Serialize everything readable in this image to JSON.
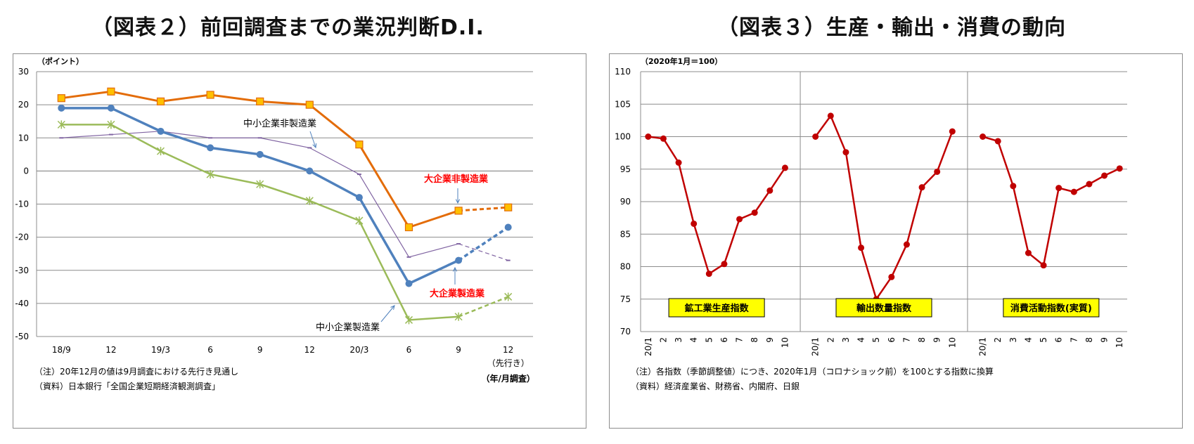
{
  "titles": {
    "left": "（図表２）前回調査までの業況判断D.I.",
    "right": "（図表３）生産・輸出・消費の動向"
  },
  "colors": {
    "large_mfg": "#4f81bd",
    "large_nonmfg": "#e36c09",
    "small_mfg": "#9bbb59",
    "small_nonmfg": "#8064a2",
    "label_red": "#ff0000",
    "index_line": "#c00000",
    "label_box": "#ffff00"
  },
  "chart_data": [
    {
      "type": "line",
      "unit": "（ポイント）",
      "ylim": [
        -50,
        30
      ],
      "yticks": [
        "30",
        "20",
        "10",
        "0",
        "-10",
        "-20",
        "-30",
        "-40",
        "-50"
      ],
      "categories": [
        "18/9",
        "12",
        "19/3",
        "6",
        "9",
        "12",
        "20/3",
        "6",
        "9",
        "12"
      ],
      "forecast_label": "（先行き）",
      "axis_note": "（年/月調査）",
      "grid": true,
      "series": [
        {
          "name": "大企業非製造業",
          "values": [
            22,
            24,
            21,
            23,
            21,
            20,
            8,
            -17,
            -12,
            -11
          ]
        },
        {
          "name": "大企業製造業",
          "values": [
            19,
            19,
            12,
            7,
            5,
            0,
            -8,
            -34,
            -27,
            -17
          ]
        },
        {
          "name": "中小企業製造業",
          "values": [
            14,
            14,
            6,
            -1,
            -4,
            -9,
            -15,
            -45,
            -44,
            -38
          ]
        },
        {
          "name": "中小企業非製造業",
          "values": [
            10,
            11,
            12,
            10,
            10,
            7,
            -1,
            -26,
            -22,
            -27
          ]
        }
      ],
      "notes": [
        "（注）20年12月の値は9月調査における先行き見通し",
        "（資料）日本銀行「全国企業短期経済観測調査」"
      ]
    },
    {
      "type": "line",
      "unit": "（2020年1月＝100）",
      "ylim": [
        70,
        110
      ],
      "yticks": [
        "110",
        "105",
        "100",
        "95",
        "90",
        "85",
        "80",
        "75",
        "70"
      ],
      "categories": [
        "20/1",
        "2",
        "3",
        "4",
        "5",
        "6",
        "7",
        "8",
        "9",
        "10"
      ],
      "grid": true,
      "panels": [
        {
          "name": "鉱工業生産指数",
          "values": [
            100,
            99.7,
            96,
            86.6,
            78.9,
            80.4,
            87.3,
            88.3,
            91.7,
            95.2
          ]
        },
        {
          "name": "輸出数量指数",
          "values": [
            100,
            103.2,
            97.6,
            82.9,
            75,
            78.4,
            83.4,
            92.2,
            94.6,
            100.8
          ]
        },
        {
          "name": "消費活動指数(実質)",
          "values": [
            100,
            99.3,
            92.4,
            82.1,
            80.2,
            92.1,
            91.5,
            92.7,
            94,
            95.1
          ]
        }
      ],
      "notes": [
        "（注）各指数（季節調整値）につき、2020年1月（コロナショック前）を100とする指数に換算",
        "（資料）経済産業省、財務省、内閣府、日銀"
      ]
    }
  ]
}
